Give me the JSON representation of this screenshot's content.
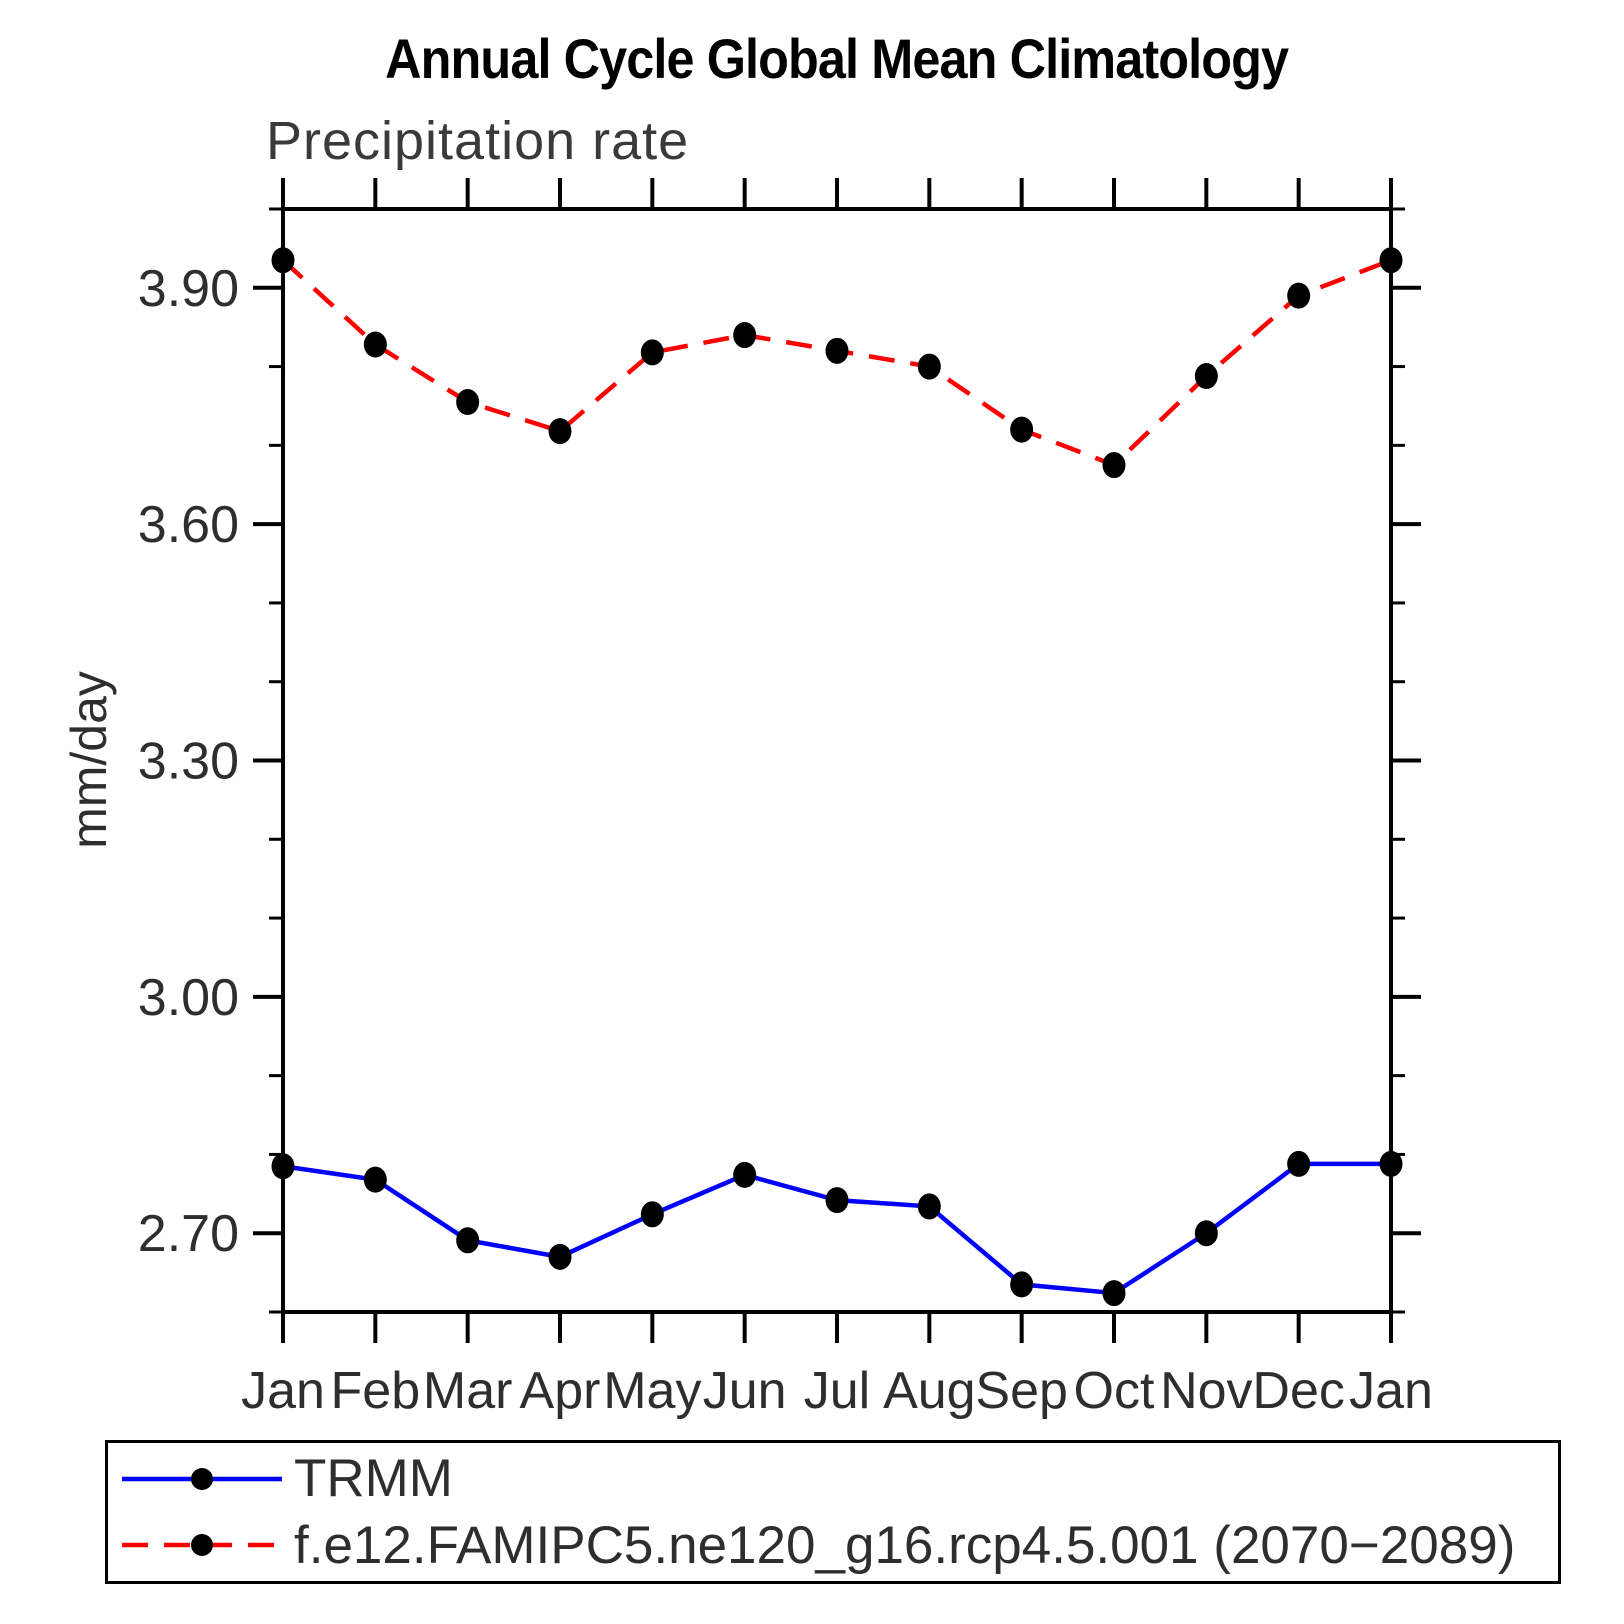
{
  "page": {
    "background": "#ffffff"
  },
  "chart_data": {
    "type": "line",
    "title": "Annual Cycle Global Mean Climatology",
    "subtitle": "Precipitation rate",
    "ylabel": "mm/day",
    "xlabel": "",
    "categories": [
      "Jan",
      "Feb",
      "Mar",
      "Apr",
      "May",
      "Jun",
      "Jul",
      "Aug",
      "Sep",
      "Oct",
      "Nov",
      "Dec",
      "Jan"
    ],
    "ylim": [
      2.6,
      4.0
    ],
    "yticks_major": [
      2.7,
      3.0,
      3.3,
      3.6,
      3.9
    ],
    "ytick_labels": [
      "2.70",
      "3.00",
      "3.30",
      "3.60",
      "3.90"
    ],
    "yticks_minor": [
      2.6,
      2.8,
      2.9,
      3.1,
      3.2,
      3.4,
      3.5,
      3.7,
      3.8,
      4.0
    ],
    "grid": false,
    "legend_position": "bottom",
    "axis_color": "#000000",
    "series": [
      {
        "name": "TRMM",
        "color": "#0000ff",
        "line_style": "solid",
        "marker": "circle",
        "marker_color": "#000000",
        "values": [
          2.785,
          2.768,
          2.691,
          2.67,
          2.724,
          2.774,
          2.742,
          2.734,
          2.635,
          2.624,
          2.7,
          2.788,
          2.788
        ]
      },
      {
        "name": "f.e12.FAMIPC5.ne120_g16.rcp4.5.001 (2070−2089)",
        "color": "#ff0000",
        "line_style": "dashed",
        "marker": "circle",
        "marker_color": "#000000",
        "values": [
          3.935,
          3.828,
          3.755,
          3.718,
          3.818,
          3.84,
          3.82,
          3.8,
          3.72,
          3.675,
          3.788,
          3.89,
          3.935
        ]
      }
    ]
  }
}
